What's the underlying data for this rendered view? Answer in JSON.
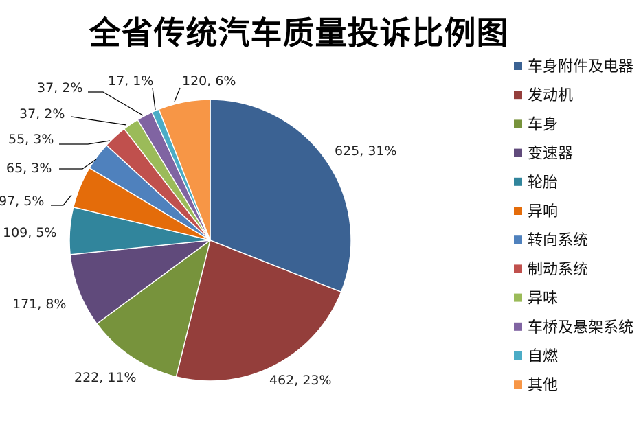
{
  "chart_data": {
    "type": "pie",
    "title": "全省传统汽车质量投诉比例图",
    "legend_position": "right",
    "slices": [
      {
        "name": "车身附件及电器",
        "value": 625,
        "label": "625, 31%",
        "color": "#3B6293"
      },
      {
        "name": "发动机",
        "value": 462,
        "label": "462, 23%",
        "color": "#943E3B"
      },
      {
        "name": "车身",
        "value": 222,
        "label": "222, 11%",
        "color": "#77933C"
      },
      {
        "name": "变速器",
        "value": 171,
        "label": "171, 8%",
        "color": "#604A7B"
      },
      {
        "name": "轮胎",
        "value": 109,
        "label": "109, 5%",
        "color": "#31859C"
      },
      {
        "name": "异响",
        "value": 97,
        "label": "97, 5%",
        "color": "#E46C0A"
      },
      {
        "name": "转向系统",
        "value": 65,
        "label": "65, 3%",
        "color": "#4F81BD"
      },
      {
        "name": "制动系统",
        "value": 55,
        "label": "55, 3%",
        "color": "#C0504D"
      },
      {
        "name": "异味",
        "value": 37,
        "label": "37, 2%",
        "color": "#9BBB59"
      },
      {
        "name": "车桥及悬架系统",
        "value": 37,
        "label": "37, 2%",
        "color": "#8064A2"
      },
      {
        "name": "自燃",
        "value": 17,
        "label": "17, 1%",
        "color": "#4BACC6"
      },
      {
        "name": "其他",
        "value": 120,
        "label": "120, 6%",
        "color": "#F79646"
      }
    ]
  }
}
